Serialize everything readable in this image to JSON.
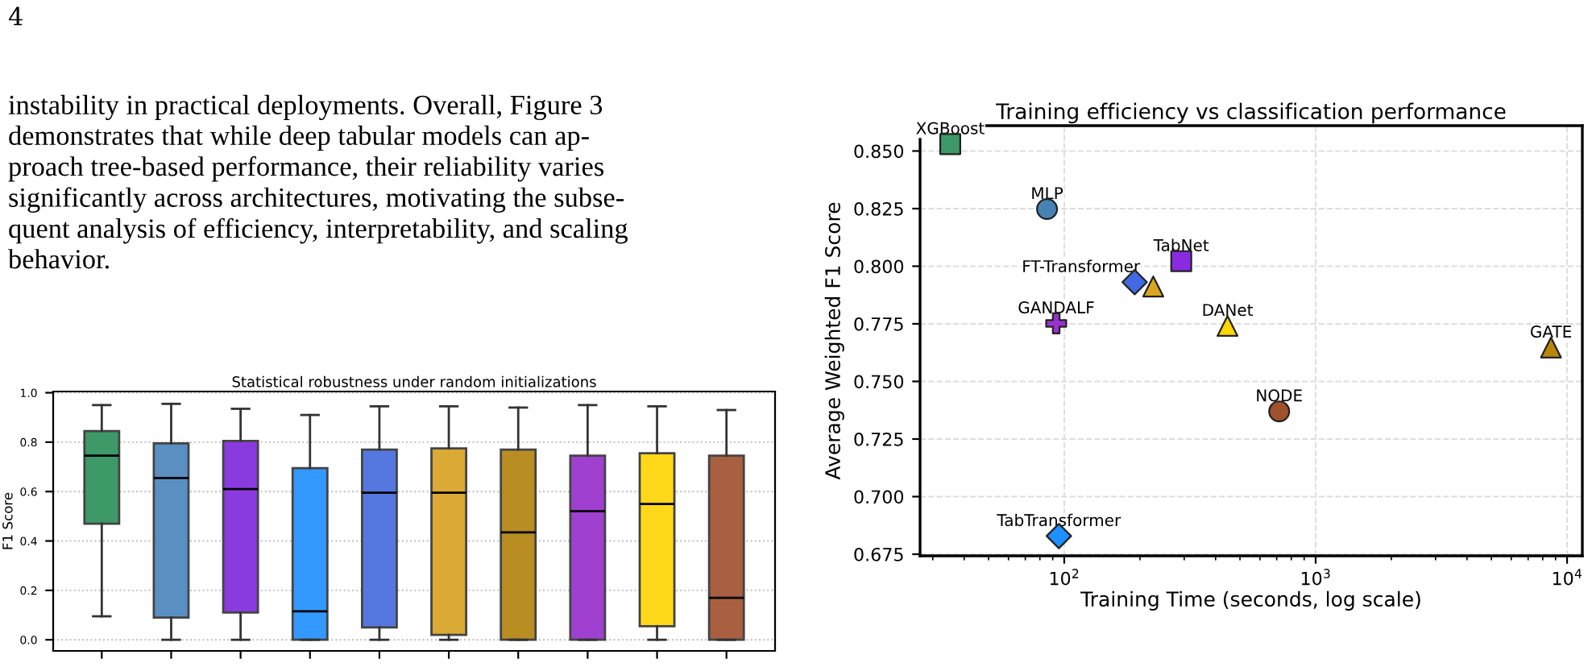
{
  "chart_data": [
    {
      "type": "other",
      "annotations": [
        "4",
        "instability in practical deployments. Overall, Figure 3\ndemonstrates that while deep tabular models can ap-\nproach tree-based performance, their reliability varies\nsignificantly across architectures, motivating the subse-\nquent analysis of efficiency, interpretability, and scaling\nbehavior."
      ]
    },
    {
      "type": "box",
      "title": "Statistical robustness under random initializations",
      "ylabel": "F1 Score",
      "categories": [
        null,
        null,
        null,
        null,
        null,
        null,
        null,
        null,
        null,
        null
      ],
      "colors": [
        "#3d9a68",
        "#5a8fc4",
        "#8a3be0",
        "#3399ff",
        "#5577e0",
        "#daaa35",
        "#b88d22",
        "#a040d0",
        "#ffd81a",
        "#a86040"
      ],
      "boxes": [
        {
          "low": 0.095,
          "q1": 0.47,
          "median": 0.745,
          "q3": 0.845,
          "high": 0.95
        },
        {
          "low": 0.0,
          "q1": 0.09,
          "median": 0.655,
          "q3": 0.795,
          "high": 0.955
        },
        {
          "low": 0.0,
          "q1": 0.11,
          "median": 0.61,
          "q3": 0.805,
          "high": 0.935
        },
        {
          "low": 0.0,
          "q1": 0.0,
          "median": 0.115,
          "q3": 0.695,
          "high": 0.91
        },
        {
          "low": 0.0,
          "q1": 0.05,
          "median": 0.595,
          "q3": 0.77,
          "high": 0.945
        },
        {
          "low": 0.0,
          "q1": 0.02,
          "median": 0.595,
          "q3": 0.775,
          "high": 0.945
        },
        {
          "low": 0.0,
          "q1": 0.0,
          "median": 0.435,
          "q3": 0.77,
          "high": 0.94
        },
        {
          "low": 0.0,
          "q1": 0.0,
          "median": 0.52,
          "q3": 0.745,
          "high": 0.95
        },
        {
          "low": 0.0,
          "q1": 0.055,
          "median": 0.55,
          "q3": 0.755,
          "high": 0.945
        },
        {
          "low": 0.0,
          "q1": 0.0,
          "median": 0.17,
          "q3": 0.745,
          "high": 0.93
        }
      ],
      "ylim": [
        -0.045,
        1.005
      ],
      "yticks": [
        {
          "value": 0,
          "label": "0.0"
        },
        0.2,
        0.4,
        0.6,
        0.8,
        {
          "value": 1,
          "label": "1.0"
        }
      ],
      "grid": "y"
    },
    {
      "type": "scatter",
      "title": "Training efficiency vs classification performance",
      "xlabel": "Training Time (seconds, log scale)",
      "ylabel": "Average Weighted F1 Score",
      "log": "x",
      "grid": true,
      "xlim": [
        26.7,
        11500
      ],
      "xticks": [
        {
          "value": 100,
          "label": "10$^{2}$"
        },
        {
          "value": 1000,
          "label": "10$^{3}$"
        },
        {
          "value": 10000,
          "label": "10$^{4}$"
        }
      ],
      "ylim": [
        0.6743,
        0.861
      ],
      "yticks": [
        {
          "value": 0.675,
          "label": "0.675"
        },
        {
          "value": 0.7,
          "label": "0.700"
        },
        {
          "value": 0.725,
          "label": "0.725"
        },
        {
          "value": 0.75,
          "label": "0.750"
        },
        {
          "value": 0.775,
          "label": "0.775"
        },
        {
          "value": 0.8,
          "label": "0.800"
        },
        {
          "value": 0.825,
          "label": "0.825"
        },
        {
          "value": 0.85,
          "label": "0.850"
        }
      ],
      "series": [
        {
          "name": "XGBoost",
          "color": "#3d9a68",
          "marker": "square",
          "x": [
            35.2
          ],
          "values": [
            0.853
          ]
        },
        {
          "name": "MLP",
          "color": "#4682b4",
          "marker": "circle",
          "x": [
            85.4
          ],
          "values": [
            0.8248
          ]
        },
        {
          "name": "TabNet",
          "color": "#8a2be2",
          "marker": "square",
          "x": [
            292
          ],
          "values": [
            0.8022
          ]
        },
        {
          "name": "FT-Transformer",
          "color": "#4169e1",
          "marker": "diamond",
          "x": [
            190.6
          ],
          "values": [
            0.7931
          ]
        },
        {
          "color": "#daa520",
          "marker": "triangle",
          "x": [
            226
          ],
          "values": [
            0.7912
          ]
        },
        {
          "name": "GANDALF",
          "color": "#9932cc",
          "marker": "cross",
          "x": [
            92.9
          ],
          "values": [
            0.7752
          ]
        },
        {
          "name": "DANet",
          "color": "#ffd700",
          "marker": "triangle",
          "x": [
            446
          ],
          "values": [
            0.7741
          ]
        },
        {
          "name": "GATE",
          "color": "#b8860b",
          "marker": "triangle",
          "x": [
            8630
          ],
          "values": [
            0.7647
          ]
        },
        {
          "name": "NODE",
          "color": "#a0522d",
          "marker": "circle",
          "x": [
            716
          ],
          "values": [
            0.737
          ]
        },
        {
          "name": "TabTransformer",
          "color": "#1e90ff",
          "marker": "diamond",
          "x": [
            95.2
          ],
          "values": [
            0.6829
          ]
        }
      ]
    }
  ]
}
